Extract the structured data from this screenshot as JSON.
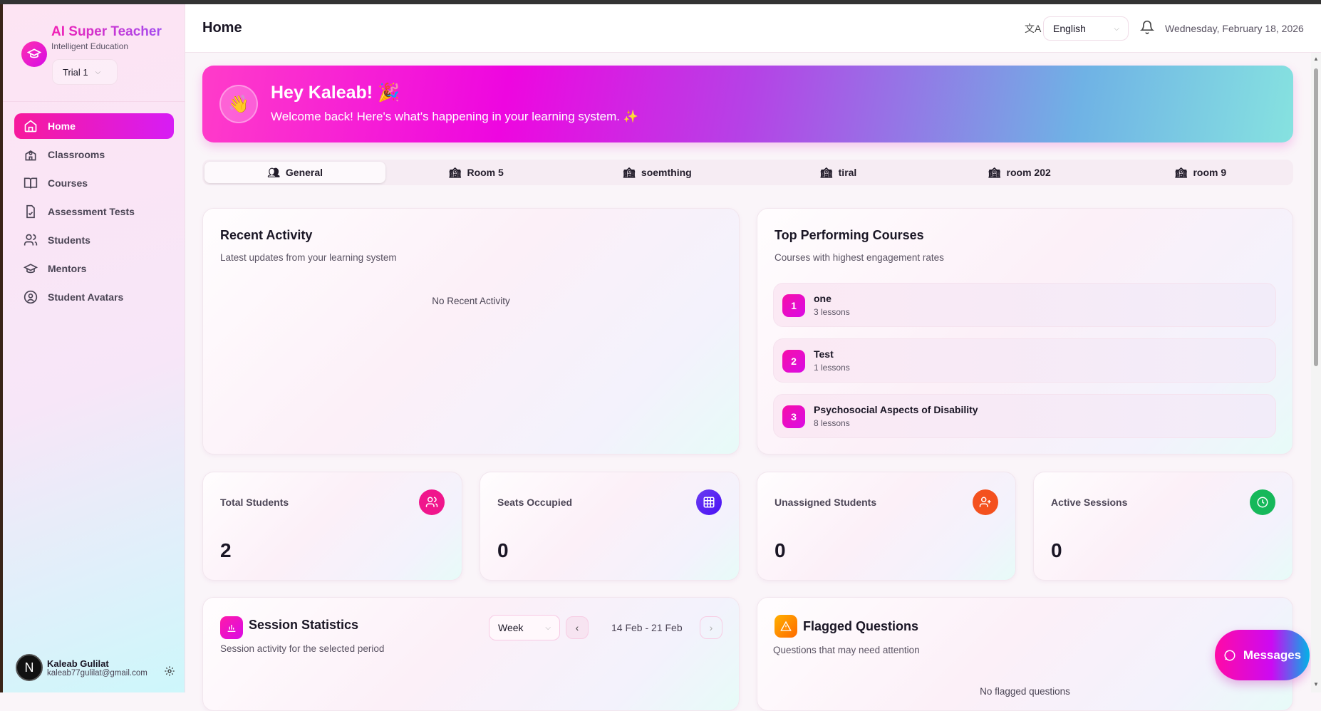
{
  "app": {
    "title": "AI Super Teacher",
    "subtitle": "Intelligent Education",
    "workspace": "Trial 1"
  },
  "sidebar": {
    "items": [
      {
        "label": "Home",
        "icon": "home-icon",
        "active": true
      },
      {
        "label": "Classrooms",
        "icon": "school-icon"
      },
      {
        "label": "Courses",
        "icon": "book-icon"
      },
      {
        "label": "Assessment Tests",
        "icon": "file-check-icon"
      },
      {
        "label": "Students",
        "icon": "users-icon"
      },
      {
        "label": "Mentors",
        "icon": "graduation-cap-icon"
      },
      {
        "label": "Student Avatars",
        "icon": "user-circle-icon"
      }
    ]
  },
  "user": {
    "initial": "N",
    "name": "Kaleab Gulilat",
    "email": "kaleab77gulilat@gmail.com"
  },
  "header": {
    "title": "Home",
    "language": "English",
    "date": "Wednesday, February 18, 2026"
  },
  "banner": {
    "greeting": "Hey Kaleab! 🎉",
    "message": "Welcome back! Here's what's happening in your learning system. ✨",
    "wave": "👋"
  },
  "tabs": [
    {
      "label": "General",
      "active": true
    },
    {
      "label": "Room 5"
    },
    {
      "label": "soemthing"
    },
    {
      "label": "tiral"
    },
    {
      "label": "room 202"
    },
    {
      "label": "room 9"
    }
  ],
  "recent_activity": {
    "title": "Recent Activity",
    "subtitle": "Latest updates from your learning system",
    "empty": "No Recent Activity"
  },
  "top_courses": {
    "title": "Top Performing Courses",
    "subtitle": "Courses with highest engagement rates",
    "items": [
      {
        "rank": "1",
        "name": "one",
        "lessons": "3 lessons"
      },
      {
        "rank": "2",
        "name": "Test",
        "lessons": "1 lessons"
      },
      {
        "rank": "3",
        "name": "Psychosocial Aspects of Disability",
        "lessons": "8 lessons"
      }
    ]
  },
  "stats": [
    {
      "label": "Total Students",
      "value": "2",
      "color": "#f0168c"
    },
    {
      "label": "Seats Occupied",
      "value": "0",
      "color": "#5a22f0"
    },
    {
      "label": "Unassigned Students",
      "value": "0",
      "color": "#f4511e"
    },
    {
      "label": "Active Sessions",
      "value": "0",
      "color": "#16b85a"
    }
  ],
  "session_stats": {
    "title": "Session Statistics",
    "subtitle": "Session activity for the selected period",
    "period": "Week",
    "range": "14 Feb - 21 Feb"
  },
  "flagged": {
    "title": "Flagged Questions",
    "subtitle": "Questions that may need attention",
    "empty": "No flagged questions"
  },
  "messages": {
    "label": "Messages"
  }
}
